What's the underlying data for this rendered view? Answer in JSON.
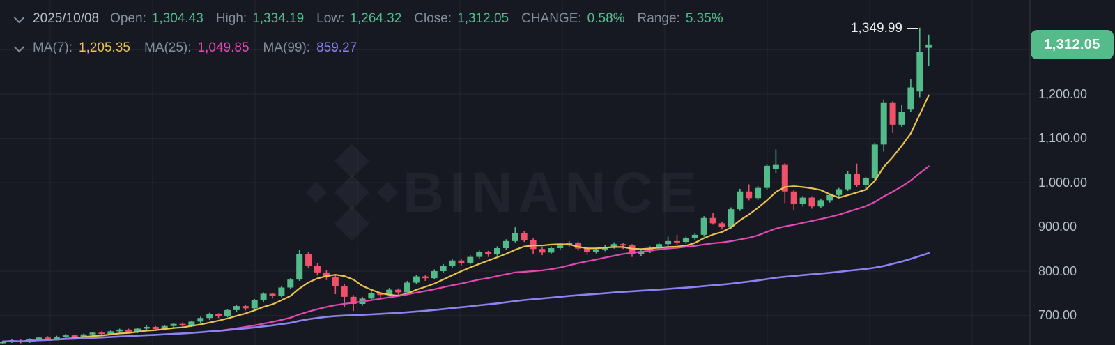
{
  "header": {
    "date": "2025/10/08",
    "pairs": [
      {
        "label": "Open:",
        "value": "1,304.43"
      },
      {
        "label": "High:",
        "value": "1,334.19"
      },
      {
        "label": "Low:",
        "value": "1,264.32"
      },
      {
        "label": "Close:",
        "value": "1,312.05"
      },
      {
        "label": "CHANGE:",
        "value": "0.58%"
      },
      {
        "label": "Range:",
        "value": "5.35%"
      }
    ]
  },
  "ma_legend": [
    {
      "label": "MA(7):",
      "value": "1,205.35",
      "color": "#E9C34D"
    },
    {
      "label": "MA(25):",
      "value": "1,049.85",
      "color": "#E448B4"
    },
    {
      "label": "MA(99):",
      "value": "859.27",
      "color": "#8C82F2"
    }
  ],
  "axis": {
    "tick_labels": [
      "1,200.00",
      "1,100.00",
      "1,000.00",
      "900.00",
      "800.00",
      "700.00"
    ],
    "last_price_badge": "1,312.05"
  },
  "annotation": {
    "high_label": "1,349.99"
  },
  "watermark": {
    "text": "BINANCE"
  },
  "colors": {
    "background": "#161922",
    "up": "#53BA89",
    "down": "#F0506A",
    "ma7": "#E9C34D",
    "ma25": "#E448B4",
    "ma99": "#8C82F2",
    "badge": "#55BB8A",
    "grid": "rgba(255,255,255,0.05)",
    "axis_divider": "#2A2E39",
    "label_gray": "#848E9C",
    "value_green": "#54BD8D",
    "tick_text": "#B7BDC6"
  },
  "chart_data": {
    "type": "candlestick",
    "title": "Daily candlestick chart with MA(7), MA(25), MA(99) overlays",
    "y_axis": {
      "tick_min": 700,
      "tick_max": 1200,
      "tick_step": 100,
      "visible_price_range": [
        628,
        1411
      ]
    },
    "x_axis": {
      "labels_visible": false,
      "last_date": "2025/10/08"
    },
    "annotated_high": 1349.99,
    "last_price": 1312.05,
    "last_candle": {
      "open": 1304.43,
      "high": 1334.19,
      "low": 1264.32,
      "close": 1312.05,
      "change_pct": 0.58,
      "range_pct": 5.35
    },
    "ma_values_at_last": {
      "ma7": 1205.35,
      "ma25": 1049.85,
      "ma99": 859.27
    },
    "ma_windows": [
      7,
      25,
      99
    ],
    "ohlc": [
      [
        637,
        643,
        636,
        641
      ],
      [
        641,
        646,
        638,
        643
      ],
      [
        643,
        647,
        637,
        640
      ],
      [
        640,
        648,
        638,
        646
      ],
      [
        646,
        652,
        643,
        650
      ],
      [
        650,
        653,
        644,
        647
      ],
      [
        647,
        654,
        645,
        652
      ],
      [
        652,
        658,
        649,
        655
      ],
      [
        655,
        657,
        647,
        651
      ],
      [
        651,
        659,
        648,
        657
      ],
      [
        657,
        663,
        654,
        661
      ],
      [
        661,
        664,
        654,
        658
      ],
      [
        658,
        666,
        655,
        664
      ],
      [
        664,
        670,
        660,
        668
      ],
      [
        668,
        670,
        659,
        663
      ],
      [
        663,
        672,
        660,
        670
      ],
      [
        670,
        677,
        666,
        674
      ],
      [
        674,
        676,
        665,
        669
      ],
      [
        669,
        678,
        666,
        676
      ],
      [
        676,
        683,
        672,
        681
      ],
      [
        681,
        684,
        672,
        677
      ],
      [
        677,
        688,
        674,
        686
      ],
      [
        686,
        697,
        683,
        694
      ],
      [
        694,
        706,
        690,
        703
      ],
      [
        703,
        705,
        694,
        699
      ],
      [
        699,
        715,
        696,
        712
      ],
      [
        712,
        724,
        707,
        721
      ],
      [
        721,
        723,
        711,
        716
      ],
      [
        716,
        737,
        713,
        734
      ],
      [
        734,
        752,
        730,
        749
      ],
      [
        749,
        751,
        738,
        744
      ],
      [
        744,
        766,
        741,
        763
      ],
      [
        763,
        784,
        759,
        781
      ],
      [
        781,
        849,
        778,
        838
      ],
      [
        838,
        843,
        806,
        812
      ],
      [
        812,
        818,
        790,
        797
      ],
      [
        797,
        803,
        780,
        786
      ],
      [
        786,
        790,
        748,
        766
      ],
      [
        766,
        770,
        718,
        742
      ],
      [
        742,
        746,
        710,
        726
      ],
      [
        726,
        742,
        722,
        738
      ],
      [
        738,
        754,
        734,
        750
      ],
      [
        750,
        753,
        740,
        746
      ],
      [
        746,
        762,
        743,
        758
      ],
      [
        758,
        761,
        746,
        752
      ],
      [
        752,
        778,
        749,
        774
      ],
      [
        774,
        792,
        770,
        788
      ],
      [
        788,
        791,
        778,
        784
      ],
      [
        784,
        804,
        781,
        800
      ],
      [
        800,
        816,
        796,
        812
      ],
      [
        812,
        828,
        808,
        824
      ],
      [
        824,
        827,
        812,
        818
      ],
      [
        818,
        836,
        815,
        832
      ],
      [
        832,
        847,
        828,
        843
      ],
      [
        843,
        846,
        832,
        838
      ],
      [
        838,
        856,
        835,
        852
      ],
      [
        852,
        872,
        849,
        868
      ],
      [
        868,
        899,
        865,
        886
      ],
      [
        886,
        891,
        866,
        870
      ],
      [
        870,
        874,
        838,
        850
      ],
      [
        850,
        855,
        836,
        842
      ],
      [
        842,
        856,
        839,
        852
      ],
      [
        852,
        862,
        848,
        858
      ],
      [
        858,
        868,
        854,
        864
      ],
      [
        864,
        867,
        846,
        851
      ],
      [
        851,
        854,
        837,
        843
      ],
      [
        843,
        853,
        840,
        849
      ],
      [
        849,
        859,
        845,
        855
      ],
      [
        855,
        865,
        851,
        861
      ],
      [
        861,
        864,
        850,
        858
      ],
      [
        858,
        861,
        832,
        838
      ],
      [
        838,
        849,
        834,
        845
      ],
      [
        845,
        856,
        841,
        852
      ],
      [
        852,
        865,
        848,
        861
      ],
      [
        861,
        878,
        855,
        868
      ],
      [
        868,
        882,
        858,
        866
      ],
      [
        866,
        878,
        862,
        874
      ],
      [
        874,
        886,
        870,
        882
      ],
      [
        882,
        924,
        878,
        920
      ],
      [
        920,
        931,
        905,
        908
      ],
      [
        908,
        912,
        894,
        900
      ],
      [
        900,
        944,
        896,
        940
      ],
      [
        940,
        986,
        936,
        980
      ],
      [
        980,
        996,
        960,
        965
      ],
      [
        965,
        992,
        961,
        988
      ],
      [
        988,
        1042,
        984,
        1038
      ],
      [
        1030,
        1075,
        1022,
        1040
      ],
      [
        1040,
        1044,
        954,
        980
      ],
      [
        980,
        984,
        938,
        952
      ],
      [
        952,
        970,
        946,
        966
      ],
      [
        966,
        969,
        941,
        946
      ],
      [
        946,
        964,
        942,
        960
      ],
      [
        960,
        975,
        955,
        972
      ],
      [
        972,
        988,
        967,
        985
      ],
      [
        985,
        1026,
        981,
        1020
      ],
      [
        1020,
        1043,
        990,
        995
      ],
      [
        995,
        1013,
        985,
        1010
      ],
      [
        1010,
        1090,
        1003,
        1086
      ],
      [
        1086,
        1188,
        1070,
        1180
      ],
      [
        1180,
        1184,
        1112,
        1131
      ],
      [
        1131,
        1176,
        1126,
        1160
      ],
      [
        1165,
        1233,
        1160,
        1215
      ],
      [
        1206,
        1349.99,
        1193,
        1296
      ],
      [
        1304.43,
        1334.19,
        1264.32,
        1312.05
      ]
    ]
  }
}
